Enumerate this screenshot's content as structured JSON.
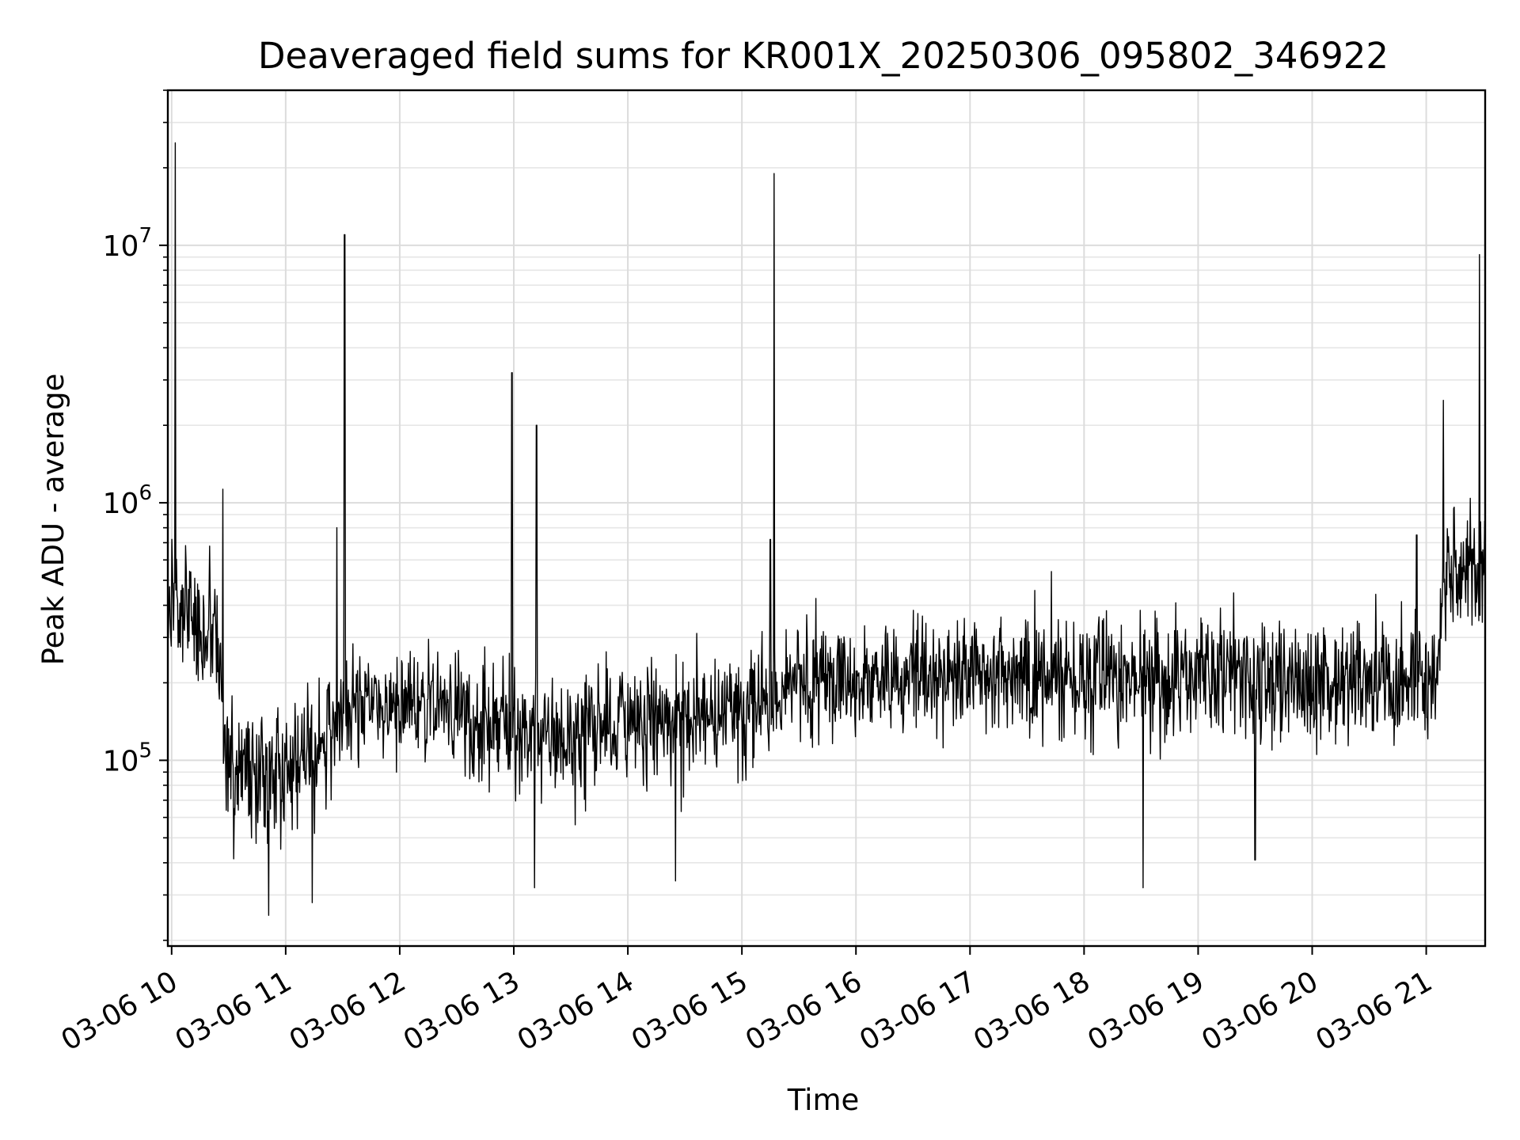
{
  "chart_data": {
    "type": "line",
    "title": "Deaveraged field sums for KR001X_20250306_095802_346922",
    "xlabel": "Time",
    "ylabel": "Peak ADU - average",
    "yscale": "log",
    "ylim": [
      19000,
      40000000
    ],
    "xlim": [
      "2025-03-06T09:58",
      "2025-03-06T21:31"
    ],
    "grid": true,
    "x_ticks": [
      {
        "value": "2025-03-06T10:00",
        "label": "03-06 10"
      },
      {
        "value": "2025-03-06T11:00",
        "label": "03-06 11"
      },
      {
        "value": "2025-03-06T12:00",
        "label": "03-06 12"
      },
      {
        "value": "2025-03-06T13:00",
        "label": "03-06 13"
      },
      {
        "value": "2025-03-06T14:00",
        "label": "03-06 14"
      },
      {
        "value": "2025-03-06T15:00",
        "label": "03-06 15"
      },
      {
        "value": "2025-03-06T16:00",
        "label": "03-06 16"
      },
      {
        "value": "2025-03-06T17:00",
        "label": "03-06 17"
      },
      {
        "value": "2025-03-06T18:00",
        "label": "03-06 18"
      },
      {
        "value": "2025-03-06T19:00",
        "label": "03-06 19"
      },
      {
        "value": "2025-03-06T20:00",
        "label": "03-06 20"
      },
      {
        "value": "2025-03-06T21:00",
        "label": "03-06 21"
      }
    ],
    "y_ticks": [
      {
        "value": 100000,
        "base": "10",
        "exp": "5"
      },
      {
        "value": 1000000,
        "base": "10",
        "exp": "6"
      },
      {
        "value": 10000000,
        "base": "10",
        "exp": "7"
      }
    ],
    "series": [
      {
        "color": "#000000",
        "baseline_points": [
          [
            "2025-03-06T09:58",
            420000
          ],
          [
            "2025-03-06T10:15",
            320000
          ],
          [
            "2025-03-06T10:25",
            280000
          ],
          [
            "2025-03-06T10:28",
            100000
          ],
          [
            "2025-03-06T10:45",
            85000
          ],
          [
            "2025-03-06T11:00",
            95000
          ],
          [
            "2025-03-06T11:15",
            110000
          ],
          [
            "2025-03-06T11:30",
            160000
          ],
          [
            "2025-03-06T12:00",
            170000
          ],
          [
            "2025-03-06T12:30",
            160000
          ],
          [
            "2025-03-06T13:00",
            135000
          ],
          [
            "2025-03-06T13:30",
            120000
          ],
          [
            "2025-03-06T14:00",
            145000
          ],
          [
            "2025-03-06T14:30",
            140000
          ],
          [
            "2025-03-06T15:00",
            160000
          ],
          [
            "2025-03-06T15:30",
            195000
          ],
          [
            "2025-03-06T16:00",
            200000
          ],
          [
            "2025-03-06T17:00",
            220000
          ],
          [
            "2025-03-06T18:00",
            210000
          ],
          [
            "2025-03-06T19:00",
            205000
          ],
          [
            "2025-03-06T20:00",
            195000
          ],
          [
            "2025-03-06T21:05",
            210000
          ],
          [
            "2025-03-06T21:10",
            520000
          ],
          [
            "2025-03-06T21:31",
            600000
          ]
        ],
        "spikes": [
          [
            "2025-03-06T10:02",
            25000000
          ],
          [
            "2025-03-06T10:27",
            1130000
          ],
          [
            "2025-03-06T11:31",
            11000000
          ],
          [
            "2025-03-06T11:27",
            800000
          ],
          [
            "2025-03-06T12:59",
            3200000
          ],
          [
            "2025-03-06T13:12",
            2000000
          ],
          [
            "2025-03-06T15:17",
            19000000
          ],
          [
            "2025-03-06T15:15",
            720000
          ],
          [
            "2025-03-06T20:55",
            750000
          ],
          [
            "2025-03-06T21:09",
            2500000
          ],
          [
            "2025-03-06T21:28",
            9200000
          ]
        ],
        "dips": [
          [
            "2025-03-06T10:51",
            25000
          ],
          [
            "2025-03-06T11:14",
            28000
          ],
          [
            "2025-03-06T13:11",
            32000
          ],
          [
            "2025-03-06T14:25",
            34000
          ],
          [
            "2025-03-06T18:31",
            32000
          ],
          [
            "2025-03-06T19:30",
            41000
          ]
        ]
      }
    ]
  }
}
